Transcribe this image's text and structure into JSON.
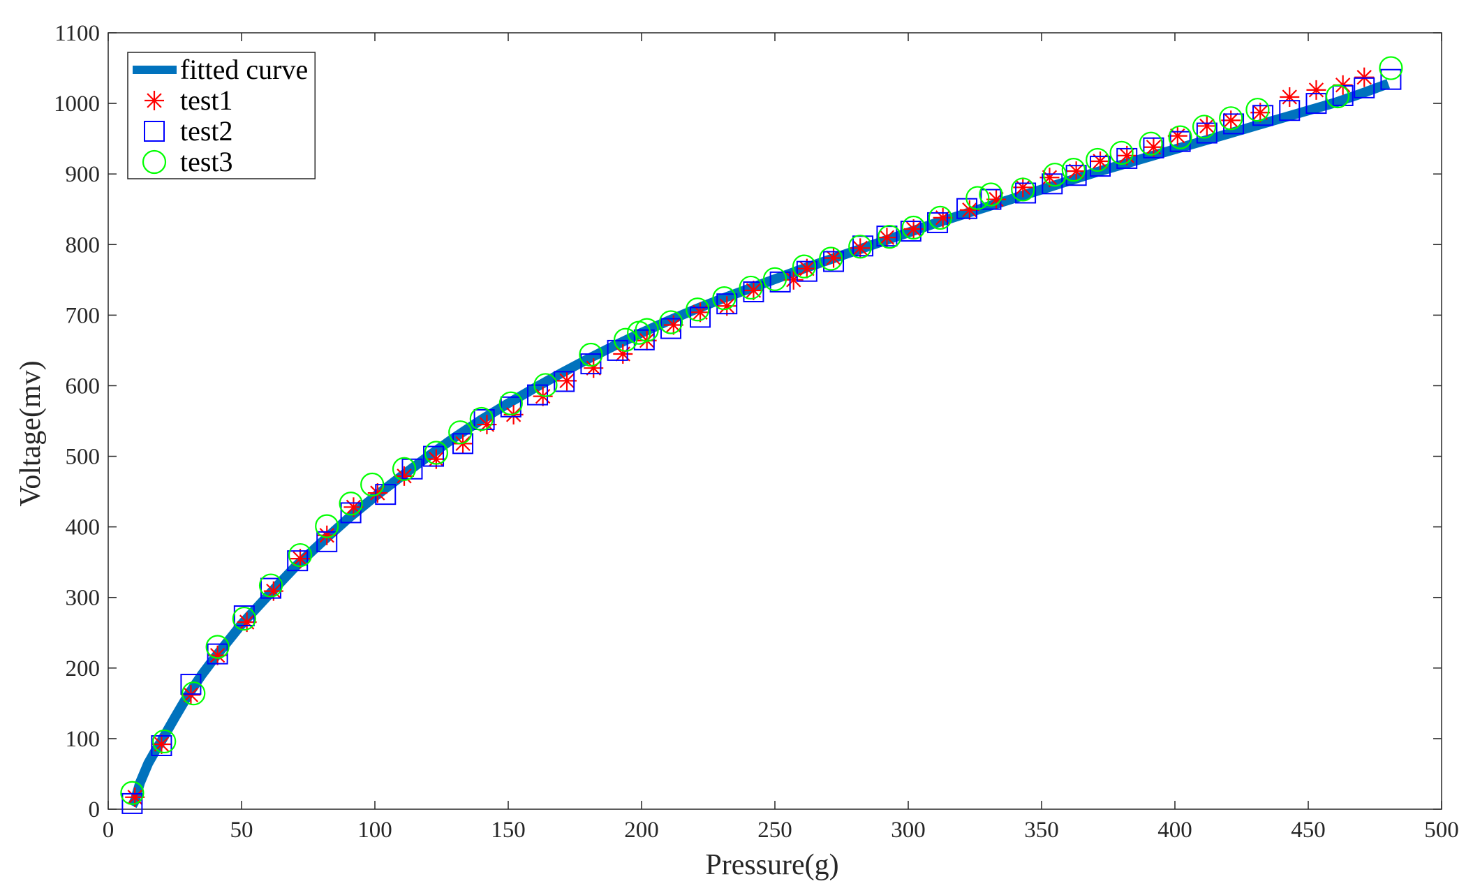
{
  "chart_data": {
    "type": "scatter",
    "title": "",
    "xlabel": "Pressure(g)",
    "ylabel": "Voltage(mv)",
    "xlim": [
      0,
      500
    ],
    "ylim": [
      0,
      1100
    ],
    "xticks": [
      0,
      50,
      100,
      150,
      200,
      250,
      300,
      350,
      400,
      450,
      500
    ],
    "yticks": [
      0,
      100,
      200,
      300,
      400,
      500,
      600,
      700,
      800,
      900,
      1000,
      1100
    ],
    "grid": false,
    "legend_position": "top-left",
    "series": [
      {
        "name": "fitted curve",
        "kind": "line",
        "color": "#0072BD",
        "x": [
          9,
          10,
          12,
          15,
          18,
          20,
          25,
          30,
          35,
          40,
          50,
          60,
          70,
          80,
          90,
          100,
          110,
          120,
          130,
          140,
          150,
          160,
          170,
          180,
          190,
          200,
          210,
          220,
          230,
          240,
          250,
          260,
          270,
          280,
          290,
          300,
          310,
          320,
          330,
          340,
          350,
          360,
          370,
          380,
          390,
          400,
          410,
          420,
          430,
          440,
          450,
          460,
          470,
          480
        ],
        "y": [
          5,
          12,
          38,
          65,
          85,
          97,
          130,
          162,
          190,
          215,
          262,
          303,
          343,
          378,
          412,
          443,
          472,
          500,
          527,
          552,
          575,
          597,
          618,
          638,
          657,
          675,
          692,
          708,
          723,
          737,
          751,
          765,
          778,
          791,
          804,
          817,
          830,
          842,
          854,
          866,
          878,
          890,
          902,
          913,
          924,
          935,
          946,
          957,
          968,
          979,
          990,
          1001,
          1014,
          1028
        ]
      },
      {
        "name": "test1",
        "kind": "marker",
        "marker": "asterisk",
        "color": "#FF0000",
        "x": [
          10,
          20,
          31,
          41,
          52,
          62,
          72,
          82,
          92,
          101,
          111,
          123,
          133,
          142,
          152,
          163,
          172,
          182,
          193,
          202,
          212,
          222,
          232,
          242,
          257,
          262,
          272,
          282,
          292,
          302,
          313,
          323,
          333,
          343,
          353,
          363,
          372,
          382,
          392,
          401,
          412,
          421,
          432,
          443,
          453,
          463,
          471
        ],
        "y": [
          17,
          92,
          162,
          218,
          265,
          309,
          355,
          388,
          428,
          448,
          472,
          496,
          518,
          545,
          559,
          585,
          607,
          625,
          645,
          664,
          686,
          704,
          713,
          735,
          750,
          766,
          781,
          795,
          810,
          822,
          838,
          849,
          864,
          881,
          895,
          904,
          918,
          926,
          938,
          954,
          968,
          976,
          987,
          1009,
          1019,
          1026,
          1037
        ]
      },
      {
        "name": "test2",
        "kind": "marker",
        "marker": "square",
        "color": "#0000FF",
        "x": [
          9,
          20,
          31,
          41,
          51,
          61,
          71,
          82,
          91,
          104,
          114,
          122,
          133,
          141,
          151,
          161,
          171,
          181,
          191,
          201,
          211,
          222,
          232,
          242,
          252,
          262,
          272,
          283,
          292,
          301,
          311,
          322,
          331,
          344,
          354,
          363,
          372,
          382,
          392,
          402,
          412,
          422,
          433,
          443,
          453,
          463,
          471,
          481
        ],
        "y": [
          8,
          90,
          177,
          220,
          274,
          313,
          352,
          379,
          420,
          446,
          482,
          500,
          518,
          552,
          570,
          587,
          606,
          631,
          650,
          665,
          681,
          697,
          716,
          733,
          747,
          762,
          776,
          798,
          812,
          819,
          831,
          851,
          864,
          873,
          886,
          898,
          911,
          922,
          937,
          946,
          958,
          971,
          983,
          990,
          1000,
          1011,
          1022,
          1034
        ]
      },
      {
        "name": "test3",
        "kind": "marker",
        "marker": "circle",
        "color": "#00FF00",
        "x": [
          9,
          21,
          32,
          41,
          51,
          61,
          72,
          82,
          91,
          99,
          111,
          123,
          132,
          140,
          151,
          164,
          181,
          194,
          199,
          202,
          211,
          221,
          231,
          241,
          250,
          261,
          271,
          282,
          293,
          302,
          312,
          326,
          331,
          343,
          355,
          362,
          371,
          380,
          391,
          402,
          411,
          421,
          431,
          461,
          481
        ],
        "y": [
          23,
          96,
          164,
          230,
          270,
          317,
          360,
          401,
          433,
          460,
          482,
          505,
          534,
          553,
          575,
          601,
          644,
          665,
          675,
          679,
          690,
          708,
          724,
          739,
          751,
          769,
          780,
          797,
          811,
          824,
          838,
          866,
          871,
          878,
          899,
          906,
          920,
          930,
          943,
          952,
          967,
          979,
          991,
          1010,
          1050
        ]
      }
    ]
  }
}
